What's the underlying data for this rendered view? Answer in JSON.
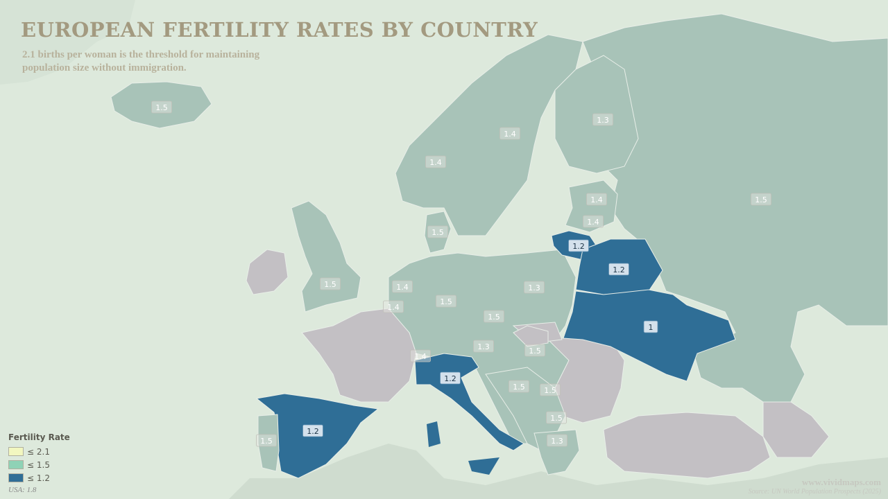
{
  "title": "EUROPEAN FERTILITY RATES BY COUNTRY",
  "subtitle": "2.1 births per woman is the threshold for maintaining population size without immigration.",
  "colors": {
    "sea": "#dde9dc",
    "low_fertility": "#2f6e96",
    "medium_fertility": "#9fbdb3",
    "no_data": "#c3c0c4",
    "land_outside": "#c6d6c6"
  },
  "legend": {
    "title": "Fertility Rate",
    "items": [
      {
        "label": "≤ 2.1",
        "color": "#f2f7c0"
      },
      {
        "label": "≤ 1.5",
        "color": "#8fd2b6"
      },
      {
        "label": "≤ 1.2",
        "color": "#2f6e96"
      }
    ],
    "note": "USA: 1.8"
  },
  "watermark": "www.vividmaps.com",
  "source": "Source: UN World Population Prospects (2025)",
  "labels": [
    {
      "name": "iceland",
      "value": "1.5",
      "category": "medium"
    },
    {
      "name": "norway",
      "value": "1.4",
      "category": "medium"
    },
    {
      "name": "sweden",
      "value": "1.4",
      "category": "medium"
    },
    {
      "name": "finland",
      "value": "1.3",
      "category": "medium"
    },
    {
      "name": "russia",
      "value": "1.5",
      "category": "medium"
    },
    {
      "name": "estonia",
      "value": "1.4",
      "category": "medium"
    },
    {
      "name": "latvia",
      "value": "1.4",
      "category": "medium"
    },
    {
      "name": "lithuania",
      "value": "1.2",
      "category": "low"
    },
    {
      "name": "belarus",
      "value": "1.2",
      "category": "low"
    },
    {
      "name": "ukraine",
      "value": "1",
      "category": "low"
    },
    {
      "name": "denmark",
      "value": "1.5",
      "category": "medium"
    },
    {
      "name": "united-kingdom",
      "value": "1.5",
      "category": "medium"
    },
    {
      "name": "netherlands",
      "value": "1.4",
      "category": "medium"
    },
    {
      "name": "belgium",
      "value": "1.4",
      "category": "medium"
    },
    {
      "name": "germany",
      "value": "1.5",
      "category": "medium"
    },
    {
      "name": "poland",
      "value": "1.3",
      "category": "medium"
    },
    {
      "name": "czechia",
      "value": "1.5",
      "category": "medium"
    },
    {
      "name": "austria",
      "value": "1.3",
      "category": "medium"
    },
    {
      "name": "switzerland",
      "value": "1.4",
      "category": "medium"
    },
    {
      "name": "hungary",
      "value": "1.5",
      "category": "medium"
    },
    {
      "name": "italy",
      "value": "1.2",
      "category": "low"
    },
    {
      "name": "spain",
      "value": "1.2",
      "category": "low"
    },
    {
      "name": "portugal",
      "value": "1.5",
      "category": "medium"
    },
    {
      "name": "bosnia",
      "value": "1.5",
      "category": "medium"
    },
    {
      "name": "serbia",
      "value": "1.5",
      "category": "medium"
    },
    {
      "name": "north-macedonia",
      "value": "1.5",
      "category": "medium"
    },
    {
      "name": "greece",
      "value": "1.3",
      "category": "medium"
    }
  ]
}
